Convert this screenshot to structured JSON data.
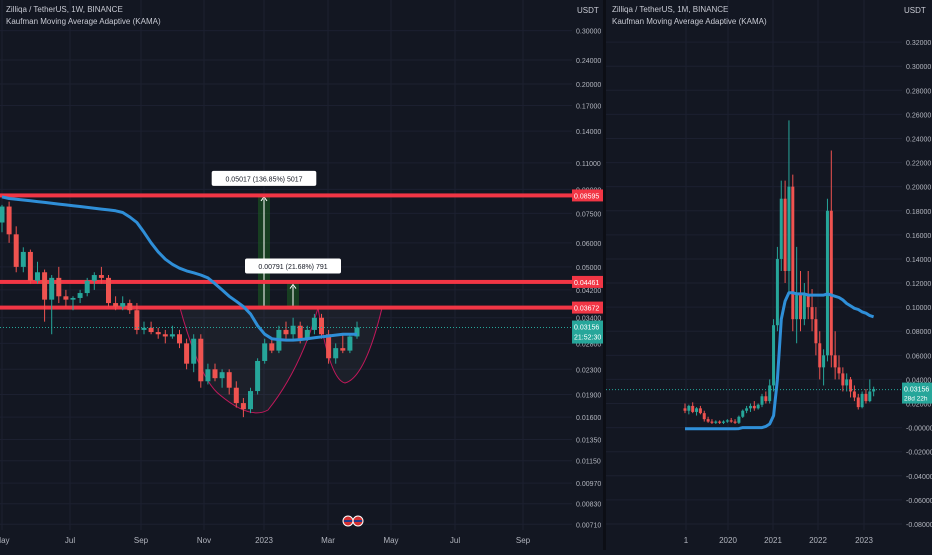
{
  "colors": {
    "background": "#131722",
    "grid": "#1c2030",
    "up": "#26a69a",
    "down": "#ef5350",
    "kama": "#2f8fd8",
    "level": "#f23645",
    "measure": "#1b5e20"
  },
  "left": {
    "title": "Zilliqa / TetherUS, 1W, BINANCE",
    "indicator": "Kaufman Moving Average Adaptive (KAMA)",
    "unit": "USDT",
    "flag_icon": "us-flag-icon",
    "chart_data": {
      "type": "candlestick",
      "timeframe": "1W",
      "y_scale": "log",
      "ylim": [
        0.0068,
        0.33
      ],
      "y_ticks": [
        "0.30000",
        "0.24000",
        "0.20000",
        "0.17000",
        "0.14000",
        "0.11000",
        "0.09000",
        "0.07500",
        "0.06000",
        "0.05000",
        "0.04200",
        "0.03400",
        "0.02800",
        "0.02300",
        "0.01900",
        "0.01600",
        "0.01350",
        "0.01150",
        "0.00970",
        "0.00830",
        "0.00710"
      ],
      "x_ticks": [
        "May",
        "Jul",
        "Sep",
        "Nov",
        "2023",
        "Mar",
        "May",
        "Jul",
        "Sep"
      ],
      "candles": [
        [
          0.07,
          0.08,
          0.065,
          0.079
        ],
        [
          0.079,
          0.082,
          0.06,
          0.064
        ],
        [
          0.064,
          0.068,
          0.048,
          0.05
        ],
        [
          0.05,
          0.058,
          0.048,
          0.056
        ],
        [
          0.056,
          0.057,
          0.044,
          0.045
        ],
        [
          0.045,
          0.052,
          0.044,
          0.048
        ],
        [
          0.048,
          0.049,
          0.033,
          0.039
        ],
        [
          0.039,
          0.047,
          0.03,
          0.046
        ],
        [
          0.046,
          0.05,
          0.038,
          0.04
        ],
        [
          0.04,
          0.042,
          0.037,
          0.039
        ],
        [
          0.039,
          0.04,
          0.036,
          0.0395
        ],
        [
          0.0395,
          0.042,
          0.038,
          0.041
        ],
        [
          0.041,
          0.046,
          0.04,
          0.045
        ],
        [
          0.045,
          0.048,
          0.042,
          0.047
        ],
        [
          0.047,
          0.05,
          0.044,
          0.046
        ],
        [
          0.046,
          0.047,
          0.037,
          0.038
        ],
        [
          0.038,
          0.04,
          0.036,
          0.037
        ],
        [
          0.037,
          0.04,
          0.036,
          0.038
        ],
        [
          0.038,
          0.039,
          0.035,
          0.036
        ],
        [
          0.036,
          0.038,
          0.03,
          0.031
        ],
        [
          0.031,
          0.033,
          0.03,
          0.0315
        ],
        [
          0.0315,
          0.033,
          0.03,
          0.0305
        ],
        [
          0.0305,
          0.0315,
          0.029,
          0.03
        ],
        [
          0.03,
          0.031,
          0.028,
          0.0295
        ],
        [
          0.0295,
          0.032,
          0.029,
          0.03
        ],
        [
          0.03,
          0.031,
          0.027,
          0.028
        ],
        [
          0.028,
          0.029,
          0.023,
          0.024
        ],
        [
          0.024,
          0.03,
          0.0225,
          0.029
        ],
        [
          0.029,
          0.03,
          0.02,
          0.021
        ],
        [
          0.021,
          0.024,
          0.0205,
          0.023
        ],
        [
          0.023,
          0.024,
          0.021,
          0.0215
        ],
        [
          0.0215,
          0.023,
          0.02,
          0.0225
        ],
        [
          0.0225,
          0.023,
          0.019,
          0.02
        ],
        [
          0.02,
          0.021,
          0.0172,
          0.0178
        ],
        [
          0.0178,
          0.0185,
          0.016,
          0.017
        ],
        [
          0.017,
          0.02,
          0.0165,
          0.0195
        ],
        [
          0.0195,
          0.025,
          0.019,
          0.0245
        ],
        [
          0.0245,
          0.029,
          0.024,
          0.028
        ],
        [
          0.028,
          0.029,
          0.026,
          0.0265
        ],
        [
          0.0265,
          0.032,
          0.026,
          0.031
        ],
        [
          0.031,
          0.033,
          0.029,
          0.03
        ],
        [
          0.03,
          0.034,
          0.029,
          0.032
        ],
        [
          0.032,
          0.033,
          0.028,
          0.029
        ],
        [
          0.029,
          0.032,
          0.0285,
          0.031
        ],
        [
          0.031,
          0.035,
          0.03,
          0.034
        ],
        [
          0.034,
          0.035,
          0.029,
          0.03
        ],
        [
          0.03,
          0.031,
          0.024,
          0.025
        ],
        [
          0.025,
          0.028,
          0.024,
          0.027
        ],
        [
          0.027,
          0.03,
          0.026,
          0.0265
        ],
        [
          0.0265,
          0.03,
          0.026,
          0.0295
        ],
        [
          0.0295,
          0.033,
          0.029,
          0.0316
        ]
      ],
      "kama": [
        0.085,
        0.084,
        0.0835,
        0.083,
        0.0825,
        0.082,
        0.0815,
        0.081,
        0.0805,
        0.08,
        0.0795,
        0.079,
        0.0785,
        0.078,
        0.0775,
        0.077,
        0.0765,
        0.0755,
        0.073,
        0.07,
        0.065,
        0.06,
        0.056,
        0.053,
        0.051,
        0.0495,
        0.0485,
        0.0478,
        0.047,
        0.046,
        0.044,
        0.042,
        0.04,
        0.0385,
        0.037,
        0.035,
        0.032,
        0.03,
        0.029,
        0.0288,
        0.0287,
        0.0287,
        0.0288,
        0.029,
        0.0292,
        0.0294,
        0.0296,
        0.0298,
        0.03,
        0.03,
        0.03
      ],
      "levels": [
        {
          "value": 0.08595,
          "label": "0.08595"
        },
        {
          "value": 0.04461,
          "label": "0.04461"
        },
        {
          "value": 0.03672,
          "label": "0.03672"
        }
      ],
      "last_price": "0.03156",
      "countdown": "21:52:30",
      "measurements": [
        {
          "text": "0.05017 (136.85%) 5017",
          "from": 0.0362,
          "to": 0.0863
        },
        {
          "text": "0.00791 (21.68%) 791",
          "from": 0.0365,
          "to": 0.0444
        }
      ]
    }
  },
  "right": {
    "title": "Zilliqa / TetherUS, 1M, BINANCE",
    "indicator": "Kaufman Moving Average Adaptive (KAMA)",
    "unit": "USDT",
    "chart_data": {
      "type": "candlestick",
      "timeframe": "1M",
      "y_scale": "linear",
      "ylim": [
        -0.085,
        0.34
      ],
      "y_ticks": [
        "0.32000",
        "0.30000",
        "0.28000",
        "0.26000",
        "0.24000",
        "0.22000",
        "0.20000",
        "0.18000",
        "0.16000",
        "0.14000",
        "0.12000",
        "0.10000",
        "0.08000",
        "0.06000",
        "0.04000",
        "0.02000",
        "-0.00000",
        "-0.02000",
        "-0.04000",
        "-0.06000",
        "-0.08000"
      ],
      "x_ticks": [
        "1",
        "2020",
        "2021",
        "2022",
        "2023"
      ],
      "candles": [
        [
          0.016,
          0.02,
          0.012,
          0.014
        ],
        [
          0.014,
          0.019,
          0.011,
          0.018
        ],
        [
          0.018,
          0.021,
          0.012,
          0.013
        ],
        [
          0.013,
          0.017,
          0.01,
          0.016
        ],
        [
          0.016,
          0.018,
          0.011,
          0.012
        ],
        [
          0.012,
          0.014,
          0.005,
          0.007
        ],
        [
          0.007,
          0.009,
          0.004,
          0.005
        ],
        [
          0.005,
          0.007,
          0.003,
          0.004
        ],
        [
          0.004,
          0.006,
          0.003,
          0.005
        ],
        [
          0.005,
          0.006,
          0.003,
          0.004
        ],
        [
          0.004,
          0.006,
          0.003,
          0.005
        ],
        [
          0.005,
          0.007,
          0.004,
          0.006
        ],
        [
          0.006,
          0.008,
          0.004,
          0.005
        ],
        [
          0.005,
          0.007,
          0.003,
          0.004
        ],
        [
          0.004,
          0.01,
          0.003,
          0.009
        ],
        [
          0.009,
          0.015,
          0.008,
          0.014
        ],
        [
          0.014,
          0.018,
          0.012,
          0.016
        ],
        [
          0.016,
          0.02,
          0.013,
          0.018
        ],
        [
          0.018,
          0.022,
          0.014,
          0.016
        ],
        [
          0.016,
          0.02,
          0.015,
          0.019
        ],
        [
          0.019,
          0.028,
          0.017,
          0.026
        ],
        [
          0.026,
          0.03,
          0.02,
          0.022
        ],
        [
          0.022,
          0.04,
          0.02,
          0.035
        ],
        [
          0.035,
          0.09,
          0.03,
          0.085
        ],
        [
          0.085,
          0.15,
          0.08,
          0.14
        ],
        [
          0.14,
          0.205,
          0.13,
          0.19
        ],
        [
          0.19,
          0.205,
          0.12,
          0.13
        ],
        [
          0.13,
          0.255,
          0.11,
          0.2
        ],
        [
          0.2,
          0.21,
          0.08,
          0.09
        ],
        [
          0.09,
          0.15,
          0.07,
          0.11
        ],
        [
          0.11,
          0.13,
          0.08,
          0.09
        ],
        [
          0.09,
          0.12,
          0.085,
          0.11
        ],
        [
          0.11,
          0.13,
          0.09,
          0.1
        ],
        [
          0.1,
          0.115,
          0.08,
          0.09
        ],
        [
          0.09,
          0.1,
          0.06,
          0.07
        ],
        [
          0.07,
          0.08,
          0.04,
          0.05
        ],
        [
          0.05,
          0.065,
          0.035,
          0.06
        ],
        [
          0.06,
          0.19,
          0.055,
          0.18
        ],
        [
          0.18,
          0.23,
          0.05,
          0.06
        ],
        [
          0.06,
          0.08,
          0.04,
          0.05
        ],
        [
          0.05,
          0.06,
          0.04,
          0.045
        ],
        [
          0.045,
          0.05,
          0.03,
          0.035
        ],
        [
          0.035,
          0.045,
          0.03,
          0.04
        ],
        [
          0.04,
          0.042,
          0.025,
          0.03
        ],
        [
          0.03,
          0.035,
          0.022,
          0.025
        ],
        [
          0.025,
          0.028,
          0.015,
          0.017
        ],
        [
          0.017,
          0.03,
          0.016,
          0.028
        ],
        [
          0.028,
          0.032,
          0.02,
          0.022
        ],
        [
          0.022,
          0.04,
          0.021,
          0.03
        ],
        [
          0.03,
          0.034,
          0.026,
          0.032
        ]
      ],
      "kama": [
        -0.001,
        -0.001,
        -0.001,
        -0.001,
        -0.001,
        -0.001,
        -0.001,
        -0.001,
        -0.001,
        -0.001,
        -0.001,
        -0.001,
        -0.001,
        -0.001,
        -0.0008,
        0.0,
        0.0,
        0.0,
        0.0,
        0.0,
        0.0,
        0.001,
        0.003,
        0.01,
        0.04,
        0.09,
        0.105,
        0.112,
        0.112,
        0.111,
        0.111,
        0.111,
        0.11,
        0.11,
        0.11,
        0.11,
        0.11,
        0.111,
        0.11,
        0.109,
        0.108,
        0.106,
        0.103,
        0.101,
        0.099,
        0.098,
        0.096,
        0.095,
        0.093,
        0.092
      ],
      "last_price": "0.03156",
      "countdown": "28d 22h"
    }
  }
}
